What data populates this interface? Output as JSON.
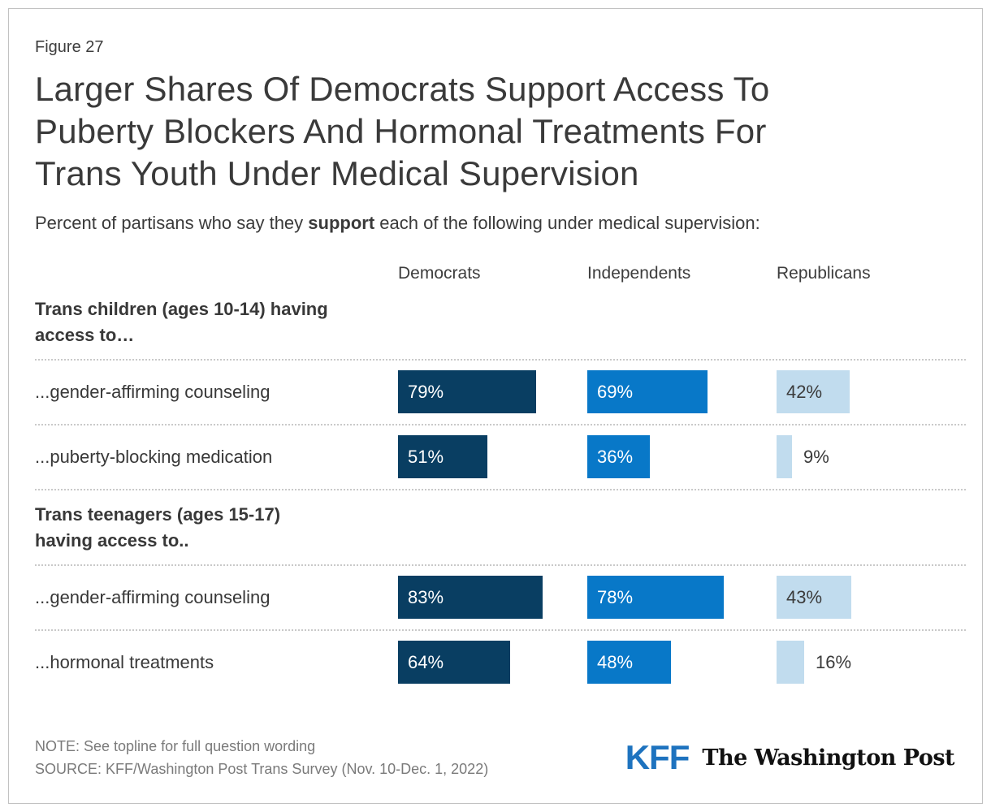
{
  "header": {
    "figure_label": "Figure 27",
    "title_lines": [
      "Larger Shares Of Democrats Support Access To",
      "Puberty Blockers And Hormonal Treatments For",
      "Trans Youth Under Medical Supervision"
    ],
    "subtitle": {
      "prefix": "Percent of partisans who say they ",
      "bold": "support",
      "suffix": " each of the following under medical supervision:"
    }
  },
  "chart_data": {
    "type": "bar",
    "orientation": "horizontal",
    "unit": "%",
    "value_range": [
      0,
      100
    ],
    "columns": [
      "Democrats",
      "Independents",
      "Republicans"
    ],
    "series_colors": {
      "Democrats": "#093e62",
      "Independents": "#0878c8",
      "Republicans": "#c1dcee"
    },
    "sections": [
      {
        "header_lines": [
          "Trans children (ages 10-14) having",
          "access to…"
        ],
        "rows": [
          {
            "label": "...gender-affirming counseling",
            "values": [
              79,
              69,
              42
            ]
          },
          {
            "label": "...puberty-blocking medication",
            "values": [
              51,
              36,
              9
            ]
          }
        ]
      },
      {
        "header_lines": [
          "Trans teenagers (ages 15-17)",
          "having access to.."
        ],
        "rows": [
          {
            "label": "...gender-affirming counseling",
            "values": [
              83,
              78,
              43
            ]
          },
          {
            "label": "...hormonal treatments",
            "values": [
              64,
              48,
              16
            ]
          }
        ]
      }
    ]
  },
  "footer": {
    "note": "NOTE: See topline for full question wording",
    "source": "SOURCE: KFF/Washington Post Trans Survey (Nov. 10-Dec. 1, 2022)",
    "logos": {
      "kff": "KFF",
      "wapo": "The Washington Post"
    }
  }
}
